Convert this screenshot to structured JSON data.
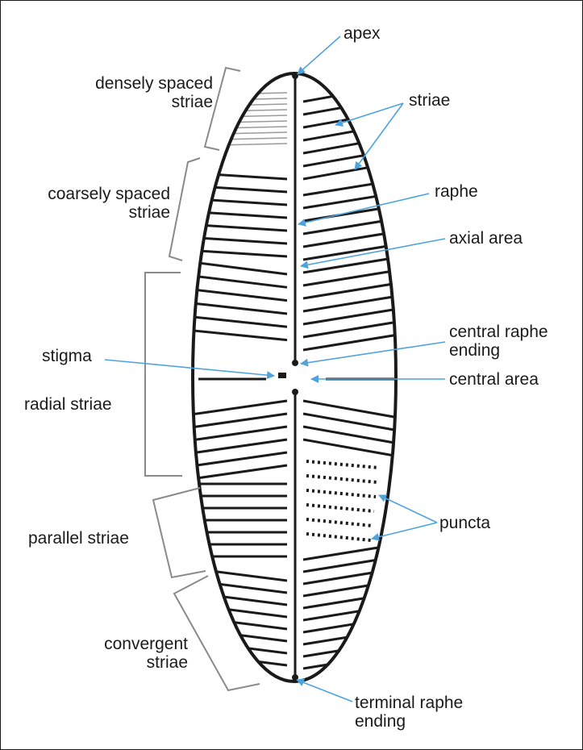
{
  "labels": {
    "apex": "apex",
    "striae": "striae",
    "raphe": "raphe",
    "axial_area": "axial area",
    "central_raphe_ending_1": "central raphe",
    "central_raphe_ending_2": "ending",
    "central_area": "central area",
    "stigma": "stigma",
    "puncta": "puncta",
    "terminal_raphe_ending_1": "terminal raphe",
    "terminal_raphe_ending_2": "ending",
    "densely_spaced_1": "densely spaced",
    "densely_spaced_2": "striae",
    "coarsely_spaced_1": "coarsely spaced",
    "coarsely_spaced_2": "striae",
    "radial_striae": "radial striae",
    "parallel_striae": "parallel striae",
    "convergent_1": "convergent",
    "convergent_2": "striae"
  },
  "colors": {
    "ink": "#1a1a1a",
    "arrow": "#4fa3dd",
    "bracket": "#8a8a8a",
    "dense_striae": "#9a9a9a"
  }
}
